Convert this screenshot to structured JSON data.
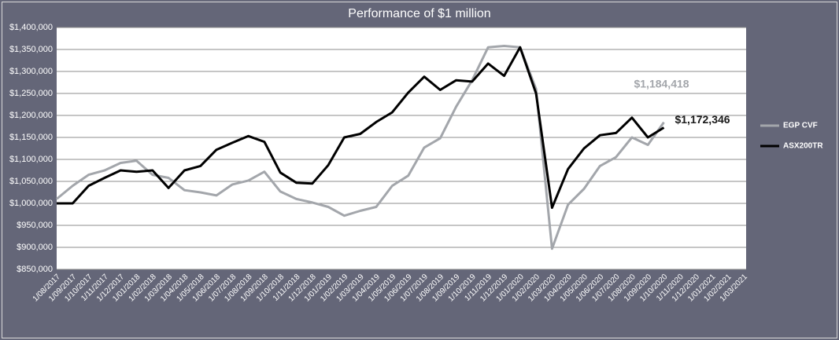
{
  "chart_data": {
    "type": "line",
    "title": "Performance of $1 million",
    "categories": [
      "1/08/2017",
      "1/09/2017",
      "1/10/2017",
      "1/11/2017",
      "1/12/2017",
      "1/01/2018",
      "1/02/2018",
      "1/03/2018",
      "1/04/2018",
      "1/05/2018",
      "1/06/2018",
      "1/07/2018",
      "1/08/2018",
      "1/09/2018",
      "1/10/2018",
      "1/11/2018",
      "1/12/2018",
      "1/01/2019",
      "1/02/2019",
      "1/03/2019",
      "1/04/2019",
      "1/05/2019",
      "1/06/2019",
      "1/07/2019",
      "1/08/2019",
      "1/09/2019",
      "1/10/2019",
      "1/11/2019",
      "1/12/2019",
      "1/01/2020",
      "1/02/2020",
      "1/03/2020",
      "1/04/2020",
      "1/05/2020",
      "1/06/2020",
      "1/07/2020",
      "1/08/2020",
      "1/09/2020",
      "1/10/2020",
      "1/11/2020",
      "1/12/2020",
      "1/01/2021",
      "1/02/2021",
      "1/03/2021"
    ],
    "series": [
      {
        "name": "EGP CVF",
        "color": "#a3a6ab",
        "end_label": "$1,184,418",
        "values": [
          1010000,
          1040000,
          1065000,
          1075000,
          1092000,
          1097000,
          1065000,
          1058000,
          1030000,
          1025000,
          1018000,
          1043000,
          1052000,
          1072000,
          1027000,
          1010000,
          1002000,
          992000,
          972000,
          983000,
          992000,
          1040000,
          1063000,
          1127000,
          1148000,
          1220000,
          1280000,
          1355000,
          1358000,
          1355000,
          1260000,
          897000,
          997000,
          1033000,
          1085000,
          1105000,
          1150000,
          1133000,
          1184418,
          null,
          null,
          null,
          null,
          null
        ]
      },
      {
        "name": "ASX200TR",
        "color": "#000000",
        "end_label": "$1,172,346",
        "values": [
          1000000,
          1000000,
          1040000,
          1058000,
          1075000,
          1072000,
          1075000,
          1035000,
          1075000,
          1085000,
          1122000,
          1138000,
          1153000,
          1140000,
          1070000,
          1047000,
          1045000,
          1087000,
          1150000,
          1158000,
          1185000,
          1207000,
          1252000,
          1288000,
          1258000,
          1280000,
          1277000,
          1318000,
          1290000,
          1355000,
          1250000,
          990000,
          1078000,
          1125000,
          1155000,
          1160000,
          1195000,
          1150000,
          1172346,
          null,
          null,
          null,
          null,
          null
        ]
      }
    ],
    "ylim": [
      850000,
      1400000
    ],
    "yticks": [
      {
        "value": 850000,
        "label": "$850,000"
      },
      {
        "value": 900000,
        "label": "$900,000"
      },
      {
        "value": 950000,
        "label": "$950,000"
      },
      {
        "value": 1000000,
        "label": "$1,000,000"
      },
      {
        "value": 1050000,
        "label": "$1,050,000"
      },
      {
        "value": 1100000,
        "label": "$1,100,000"
      },
      {
        "value": 1150000,
        "label": "$1,150,000"
      },
      {
        "value": 1200000,
        "label": "$1,200,000"
      },
      {
        "value": 1250000,
        "label": "$1,250,000"
      },
      {
        "value": 1300000,
        "label": "$1,300,000"
      },
      {
        "value": 1350000,
        "label": "$1,350,000"
      },
      {
        "value": 1400000,
        "label": "$1,400,000"
      }
    ],
    "grid": true,
    "legend": "right"
  }
}
